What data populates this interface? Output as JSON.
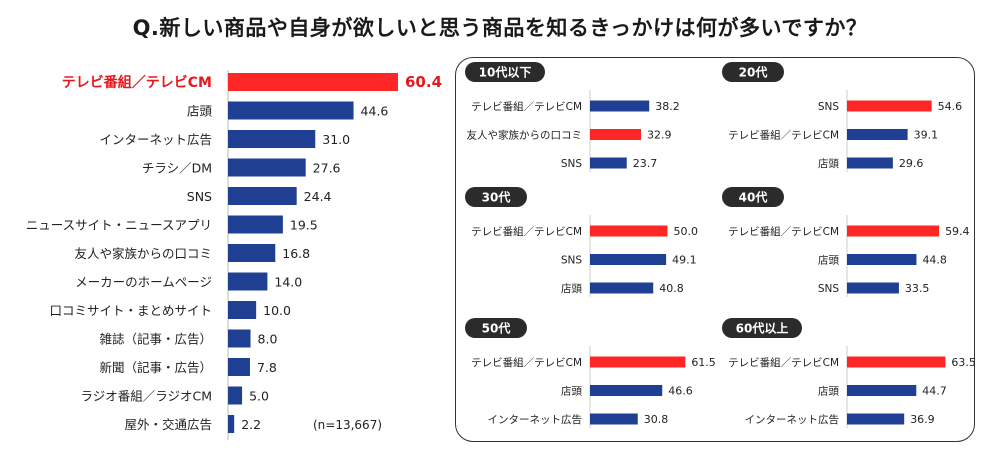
{
  "title": "Q.新しい商品や自身が欲しいと思う商品を知るきっかけは何が多いですか？",
  "colors": {
    "bar": "#1f3f93",
    "highlight": "#ff2626",
    "highlight_text": "#e8171c"
  },
  "chart_data": [
    {
      "type": "bar",
      "orientation": "horizontal",
      "title": "",
      "categories": [
        "テレビ番組／テレビCM",
        "店頭",
        "インターネット広告",
        "チラシ／DM",
        "SNS",
        "ニュースサイト・ニュースアプリ",
        "友人や家族からの口コミ",
        "メーカーのホームページ",
        "口コミサイト・まとめサイト",
        "雑誌（記事・広告）",
        "新聞（記事・広告）",
        "ラジオ番組／ラジオCM",
        "屋外・交通広告"
      ],
      "values": [
        60.4,
        44.6,
        31.0,
        27.6,
        24.4,
        19.5,
        16.8,
        14.0,
        10.0,
        8.0,
        7.8,
        5.0,
        2.2
      ],
      "value_labels": [
        "60.4",
        "44.6",
        "31.0",
        "27.6",
        "24.4",
        "19.5",
        "16.8",
        "14.0",
        "10.0",
        "8.0",
        "7.8",
        "5.0",
        "2.2"
      ],
      "highlight_index": 0,
      "note": "(n=13,667)",
      "xlim": [
        0,
        70
      ]
    },
    {
      "type": "bar",
      "orientation": "horizontal",
      "title": "10代以下",
      "categories": [
        "テレビ番組／テレビCM",
        "友人や家族からの口コミ",
        "SNS"
      ],
      "values": [
        38.2,
        32.9,
        23.7
      ],
      "value_labels": [
        "38.2",
        "32.9",
        "23.7"
      ],
      "highlight_index": 1,
      "xlim": [
        0,
        70
      ]
    },
    {
      "type": "bar",
      "orientation": "horizontal",
      "title": "20代",
      "categories": [
        "SNS",
        "テレビ番組／テレビCM",
        "店頭"
      ],
      "values": [
        54.6,
        39.1,
        29.6
      ],
      "value_labels": [
        "54.6",
        "39.1",
        "29.6"
      ],
      "highlight_index": 0,
      "xlim": [
        0,
        70
      ]
    },
    {
      "type": "bar",
      "orientation": "horizontal",
      "title": "30代",
      "categories": [
        "テレビ番組／テレビCM",
        "SNS",
        "店頭"
      ],
      "values": [
        50.0,
        49.1,
        40.8
      ],
      "value_labels": [
        "50.0",
        "49.1",
        "40.8"
      ],
      "highlight_index": 0,
      "xlim": [
        0,
        70
      ]
    },
    {
      "type": "bar",
      "orientation": "horizontal",
      "title": "40代",
      "categories": [
        "テレビ番組／テレビCM",
        "店頭",
        "SNS"
      ],
      "values": [
        59.4,
        44.8,
        33.5
      ],
      "value_labels": [
        "59.4",
        "44.8",
        "33.5"
      ],
      "highlight_index": 0,
      "xlim": [
        0,
        70
      ]
    },
    {
      "type": "bar",
      "orientation": "horizontal",
      "title": "50代",
      "categories": [
        "テレビ番組／テレビCM",
        "店頭",
        "インターネット広告"
      ],
      "values": [
        61.5,
        46.6,
        30.8
      ],
      "value_labels": [
        "61.5",
        "46.6",
        "30.8"
      ],
      "highlight_index": 0,
      "xlim": [
        0,
        70
      ]
    },
    {
      "type": "bar",
      "orientation": "horizontal",
      "title": "60代以上",
      "categories": [
        "テレビ番組／テレビCM",
        "店頭",
        "インターネット広告"
      ],
      "values": [
        63.5,
        44.7,
        36.9
      ],
      "value_labels": [
        "63.5",
        "44.7",
        "36.9"
      ],
      "highlight_index": 0,
      "xlim": [
        0,
        70
      ]
    }
  ]
}
